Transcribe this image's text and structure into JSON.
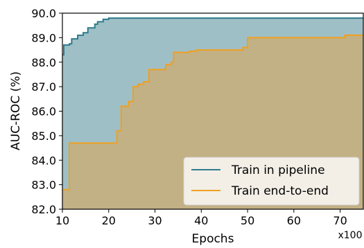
{
  "chart_data": {
    "type": "area",
    "title": "",
    "xlabel": "Epochs",
    "ylabel": "AUC-ROC (%)",
    "x_multiplier_label": "x100",
    "xlim": [
      10,
      75
    ],
    "ylim": [
      82.0,
      90.0
    ],
    "xticks": [
      10,
      20,
      30,
      40,
      50,
      60,
      70
    ],
    "yticks": [
      "82.0",
      "83.0",
      "84.0",
      "85.0",
      "86.0",
      "87.0",
      "88.0",
      "89.0",
      "90.0"
    ],
    "grid": false,
    "legend_position": "lower-right",
    "step": "post",
    "series": [
      {
        "name": "Train in pipeline",
        "color": "#2e7b8c",
        "fill_color": "#9fbfc6",
        "points": [
          [
            10,
            88.3
          ],
          [
            10.3,
            88.7
          ],
          [
            11.5,
            88.75
          ],
          [
            12,
            88.95
          ],
          [
            13.3,
            89.1
          ],
          [
            14.5,
            89.2
          ],
          [
            15.5,
            89.4
          ],
          [
            17,
            89.55
          ],
          [
            17.6,
            89.65
          ],
          [
            18.8,
            89.75
          ],
          [
            20,
            89.8
          ],
          [
            75,
            89.8
          ]
        ]
      },
      {
        "name": "Train end-to-end",
        "color": "#f0a020",
        "fill_color": "#c2b185",
        "points": [
          [
            10,
            82.8
          ],
          [
            11.5,
            84.7
          ],
          [
            21.8,
            85.2
          ],
          [
            22.7,
            86.2
          ],
          [
            24.3,
            86.4
          ],
          [
            25.3,
            87.0
          ],
          [
            26.3,
            87.1
          ],
          [
            27.5,
            87.2
          ],
          [
            28.7,
            87.7
          ],
          [
            32.3,
            87.9
          ],
          [
            33.5,
            88.0
          ],
          [
            34,
            88.4
          ],
          [
            37.5,
            88.45
          ],
          [
            39,
            88.5
          ],
          [
            49,
            88.6
          ],
          [
            50,
            89.0
          ],
          [
            71,
            89.1
          ],
          [
            75,
            89.1
          ]
        ]
      }
    ]
  }
}
